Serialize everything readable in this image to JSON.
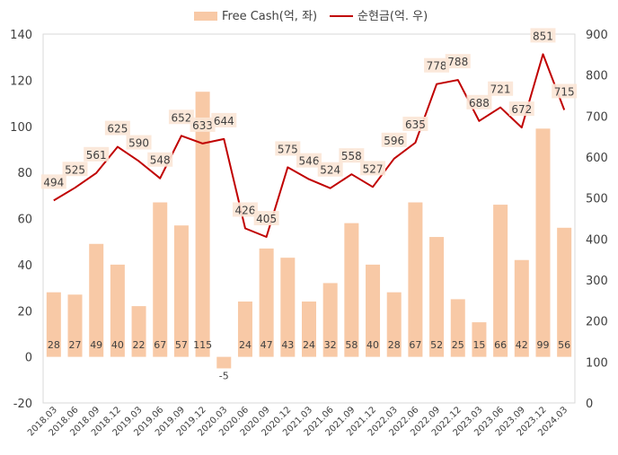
{
  "chart_data": {
    "type": "bar+line",
    "legend": {
      "bar_label": "Free Cash(억, 좌)",
      "line_label": "순현금(억. 우)",
      "position": "top-center"
    },
    "categories": [
      "2018.03",
      "2018.06",
      "2018.09",
      "2018.12",
      "2019.03",
      "2019.06",
      "2019.09",
      "2019.12",
      "2020.03",
      "2020.06",
      "2020.09",
      "2020.12",
      "2021.03",
      "2021.06",
      "2021.09",
      "2021.12",
      "2022.03",
      "2022.06",
      "2022.09",
      "2022.12",
      "2023.03",
      "2023.06",
      "2023.09",
      "2023.12",
      "2024.03"
    ],
    "bar_series": {
      "name": "Free Cash(억, 좌)",
      "axis": "left",
      "color": "#f8c9a6",
      "values": [
        28,
        27,
        49,
        40,
        22,
        67,
        57,
        115,
        -5,
        24,
        47,
        43,
        24,
        32,
        58,
        40,
        28,
        67,
        52,
        25,
        15,
        66,
        42,
        99,
        56
      ]
    },
    "line_series": {
      "name": "순현금(억. 우)",
      "axis": "right",
      "color": "#c00000",
      "values": [
        494,
        525,
        561,
        625,
        590,
        548,
        652,
        633,
        644,
        426,
        405,
        575,
        546,
        524,
        558,
        527,
        596,
        635,
        778,
        788,
        688,
        721,
        672,
        851,
        715
      ]
    },
    "left_axis": {
      "min": -20,
      "max": 140,
      "step": 20,
      "ticks": [
        "-20",
        "0",
        "20",
        "40",
        "60",
        "80",
        "100",
        "120",
        "140"
      ]
    },
    "right_axis": {
      "min": 0,
      "max": 900,
      "step": 100,
      "ticks": [
        "0",
        "100",
        "200",
        "300",
        "400",
        "500",
        "600",
        "700",
        "800",
        "900"
      ]
    },
    "grid": false
  }
}
